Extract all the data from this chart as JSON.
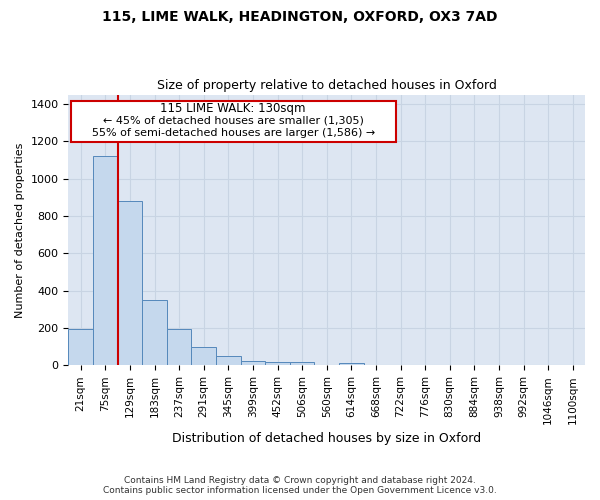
{
  "title1": "115, LIME WALK, HEADINGTON, OXFORD, OX3 7AD",
  "title2": "Size of property relative to detached houses in Oxford",
  "xlabel": "Distribution of detached houses by size in Oxford",
  "ylabel": "Number of detached properties",
  "bar_color": "#c5d8ed",
  "bar_edge_color": "#5588bb",
  "grid_color": "#c8d4e3",
  "bg_color": "#dde6f2",
  "categories": [
    "21sqm",
    "75sqm",
    "129sqm",
    "183sqm",
    "237sqm",
    "291sqm",
    "345sqm",
    "399sqm",
    "452sqm",
    "506sqm",
    "560sqm",
    "614sqm",
    "668sqm",
    "722sqm",
    "776sqm",
    "830sqm",
    "884sqm",
    "938sqm",
    "992sqm",
    "1046sqm",
    "1100sqm"
  ],
  "values": [
    197,
    1120,
    880,
    350,
    192,
    100,
    52,
    25,
    20,
    17,
    0,
    14,
    0,
    0,
    0,
    0,
    0,
    0,
    0,
    0,
    0
  ],
  "vline_pos": 1.5,
  "marker_label": "115 LIME WALK: 130sqm",
  "pct_smaller": "← 45% of detached houses are smaller (1,305)",
  "pct_larger": "55% of semi-detached houses are larger (1,586) →",
  "box_color": "#cc0000",
  "vline_color": "#cc0000",
  "ylim": [
    0,
    1450
  ],
  "yticks": [
    0,
    200,
    400,
    600,
    800,
    1000,
    1200,
    1400
  ],
  "footer": "Contains HM Land Registry data © Crown copyright and database right 2024.\nContains public sector information licensed under the Open Government Licence v3.0."
}
